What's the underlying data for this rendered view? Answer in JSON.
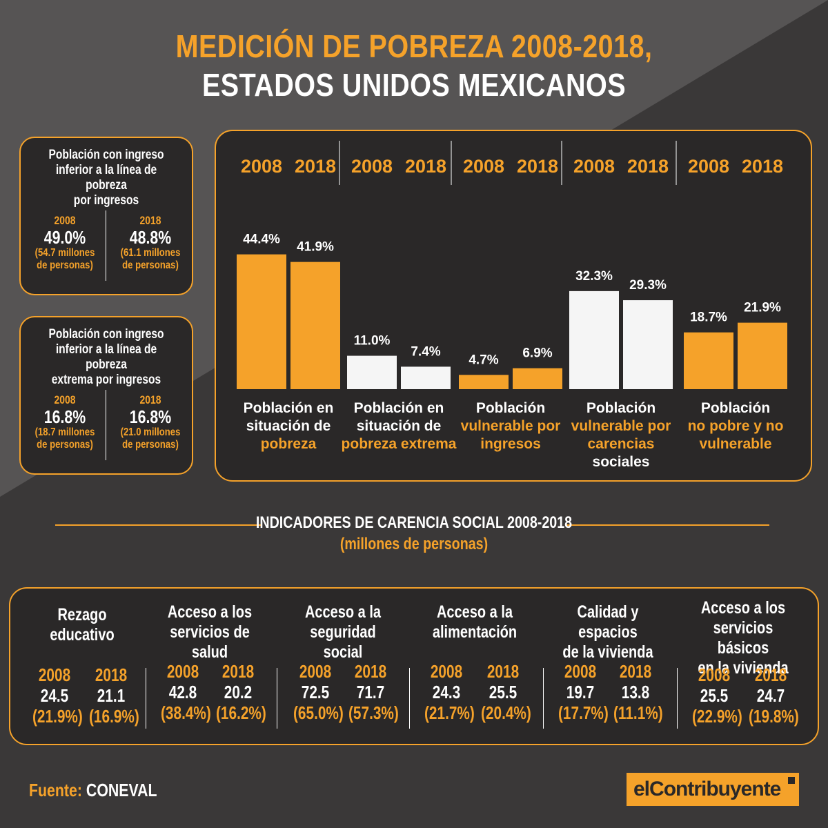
{
  "title": {
    "line1": "MEDICIÓN DE POBREZA 2008-2018,",
    "line2": "ESTADOS UNIDOS MEXICANOS"
  },
  "side_boxes": [
    {
      "title_lines": [
        "Población con ingreso",
        "inferior a la línea de pobreza",
        "por ingresos"
      ],
      "col2008": {
        "year": "2008",
        "pct": "49.0%",
        "note1": "(54.7 millones",
        "note2": "de personas)"
      },
      "col2018": {
        "year": "2018",
        "pct": "48.8%",
        "note1": "(61.1 millones",
        "note2": "de personas)"
      }
    },
    {
      "title_lines": [
        "Población con ingreso",
        "inferior a la línea de pobreza",
        "extrema por ingresos"
      ],
      "col2008": {
        "year": "2008",
        "pct": "16.8%",
        "note1": "(18.7 millones",
        "note2": "de personas)"
      },
      "col2018": {
        "year": "2018",
        "pct": "16.8%",
        "note1": "(21.0 millones",
        "note2": "de personas)"
      }
    }
  ],
  "chart_data": {
    "type": "bar",
    "series": [
      {
        "name": "2008",
        "values": [
          44.4,
          11.0,
          4.7,
          32.3,
          18.7
        ]
      },
      {
        "name": "2018",
        "values": [
          41.9,
          7.4,
          6.9,
          29.3,
          21.9
        ]
      }
    ],
    "value_labels": [
      [
        "44.4%",
        "41.9%"
      ],
      [
        "11.0%",
        "7.4%"
      ],
      [
        "4.7%",
        "6.9%"
      ],
      [
        "32.3%",
        "29.3%"
      ],
      [
        "18.7%",
        "21.9%"
      ]
    ],
    "years": [
      "2008",
      "2018"
    ],
    "bar_colors": [
      "#f5a22a",
      "#f5f5f5",
      "#f5a22a",
      "#f5f5f5",
      "#f5a22a"
    ],
    "category_labels": [
      [
        {
          "t": "Población en",
          "c": "#ffffff"
        },
        {
          "t": "situación de",
          "c": "#ffffff"
        },
        {
          "t": "pobreza",
          "c": "#f5a22a"
        }
      ],
      [
        {
          "t": "Población en",
          "c": "#ffffff"
        },
        {
          "t": "situación de",
          "c": "#ffffff"
        },
        {
          "t": "pobreza extrema",
          "c": "#f5a22a"
        }
      ],
      [
        {
          "t": "Población",
          "c": "#ffffff"
        },
        {
          "t": "vulnerable por",
          "c": "#f5a22a"
        },
        {
          "t": "ingresos",
          "c": "#f5a22a"
        }
      ],
      [
        {
          "t": "Población",
          "c": "#ffffff"
        },
        {
          "t": "vulnerable por",
          "c": "#f5a22a"
        },
        {
          "t": "carencias",
          "c": "#f5a22a"
        },
        {
          "t": "sociales",
          "c": "#ffffff"
        }
      ],
      [
        {
          "t": "Población",
          "c": "#ffffff"
        },
        {
          "t": "no pobre y no",
          "c": "#f5a22a"
        },
        {
          "t": "vulnerable",
          "c": "#f5a22a"
        }
      ]
    ],
    "ylim": [
      0,
      50
    ]
  },
  "section": {
    "title": "INDICADORES DE CARENCIA SOCIAL 2008-2018",
    "subtitle": "(millones de personas)"
  },
  "indicators": [
    {
      "title_lines": [
        "Rezago",
        "educativo"
      ],
      "y2008": "2008",
      "y2018": "2018",
      "v2008": "24.5",
      "v2018": "21.1",
      "p2008": "(21.9%)",
      "p2018": "(16.9%)"
    },
    {
      "title_lines": [
        "Acceso a los",
        "servicios de salud"
      ],
      "y2008": "2008",
      "y2018": "2018",
      "v2008": "42.8",
      "v2018": "20.2",
      "p2008": "(38.4%)",
      "p2018": "(16.2%)"
    },
    {
      "title_lines": [
        "Acceso a la",
        "seguridad social"
      ],
      "y2008": "2008",
      "y2018": "2018",
      "v2008": "72.5",
      "v2018": "71.7",
      "p2008": "(65.0%)",
      "p2018": "(57.3%)"
    },
    {
      "title_lines": [
        "Acceso a la",
        "alimentación"
      ],
      "y2008": "2008",
      "y2018": "2018",
      "v2008": "24.3",
      "v2018": "25.5",
      "p2008": "(21.7%)",
      "p2018": "(20.4%)"
    },
    {
      "title_lines": [
        "Calidad y espacios",
        "de la vivienda"
      ],
      "y2008": "2008",
      "y2018": "2018",
      "v2008": "19.7",
      "v2018": "13.8",
      "p2008": "(17.7%)",
      "p2018": "(11.1%)"
    },
    {
      "title_lines": [
        "Acceso a los",
        "servicios básicos",
        "en la vivienda"
      ],
      "y2008": "2008",
      "y2018": "2018",
      "v2008": "25.5",
      "v2018": "24.7",
      "p2008": "(22.9%)",
      "p2018": "(19.8%)"
    }
  ],
  "source": {
    "label": "Fuente:",
    "value": "CONEVAL"
  },
  "logo": {
    "text": "elContribuyente"
  },
  "colors": {
    "accent": "#f5a22a",
    "panel": "#2a2828",
    "background": "#3a3838",
    "white": "#f5f5f5"
  }
}
